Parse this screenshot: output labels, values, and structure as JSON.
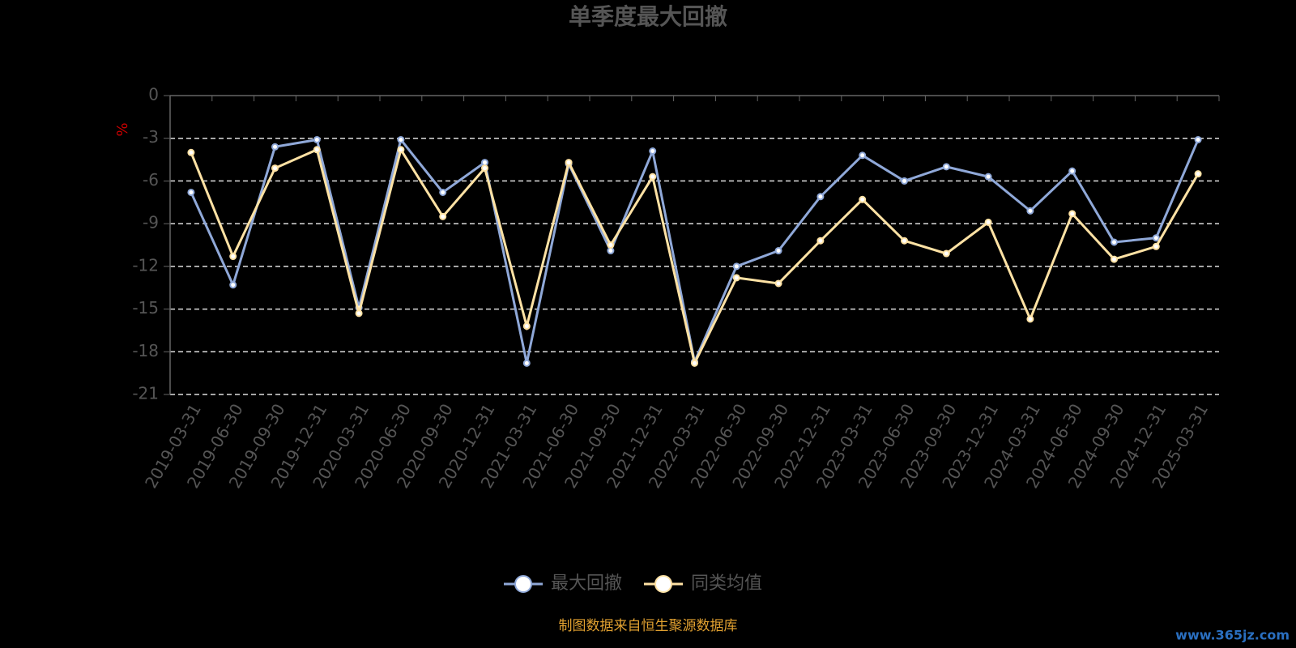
{
  "chart_data": {
    "type": "line",
    "title": "单季度最大回撤",
    "y_label": "%",
    "categories": [
      "2019-03-31",
      "2019-06-30",
      "2019-09-30",
      "2019-12-31",
      "2020-03-31",
      "2020-06-30",
      "2020-09-30",
      "2020-12-31",
      "2021-03-31",
      "2021-06-30",
      "2021-09-30",
      "2021-12-31",
      "2022-03-31",
      "2022-06-30",
      "2022-09-30",
      "2022-12-31",
      "2023-03-31",
      "2023-06-30",
      "2023-09-30",
      "2023-12-31",
      "2024-03-31",
      "2024-06-30",
      "2024-09-30",
      "2024-12-31",
      "2025-03-31"
    ],
    "series": [
      {
        "name": "最大回撤",
        "color": "#8fa8d8",
        "values": [
          -6.8,
          -13.3,
          -3.6,
          -3.1,
          -14.9,
          -3.1,
          -6.8,
          -4.7,
          -18.8,
          -4.8,
          -10.9,
          -3.9,
          -18.7,
          -12.0,
          -10.9,
          -7.1,
          -4.2,
          -6.0,
          -5.0,
          -5.7,
          -8.1,
          -5.3,
          -10.3,
          -10.0,
          -3.1
        ]
      },
      {
        "name": "同类均值",
        "color": "#ffe2a4",
        "values": [
          -4.0,
          -11.3,
          -5.1,
          -3.8,
          -15.3,
          -3.8,
          -8.5,
          -5.1,
          -16.2,
          -4.7,
          -10.5,
          -5.7,
          -18.8,
          -12.8,
          -13.2,
          -10.2,
          -7.3,
          -10.2,
          -11.1,
          -8.9,
          -15.7,
          -8.3,
          -11.5,
          -10.6,
          -5.5
        ]
      }
    ],
    "ylim": [
      -21,
      0
    ],
    "yticks": [
      0,
      -3,
      -6,
      -9,
      -12,
      -15,
      -18,
      -21
    ],
    "grid": true,
    "legend": "bottom",
    "source": "制图数据来自恒生聚源数据库",
    "watermark": "www.365jz.com"
  }
}
